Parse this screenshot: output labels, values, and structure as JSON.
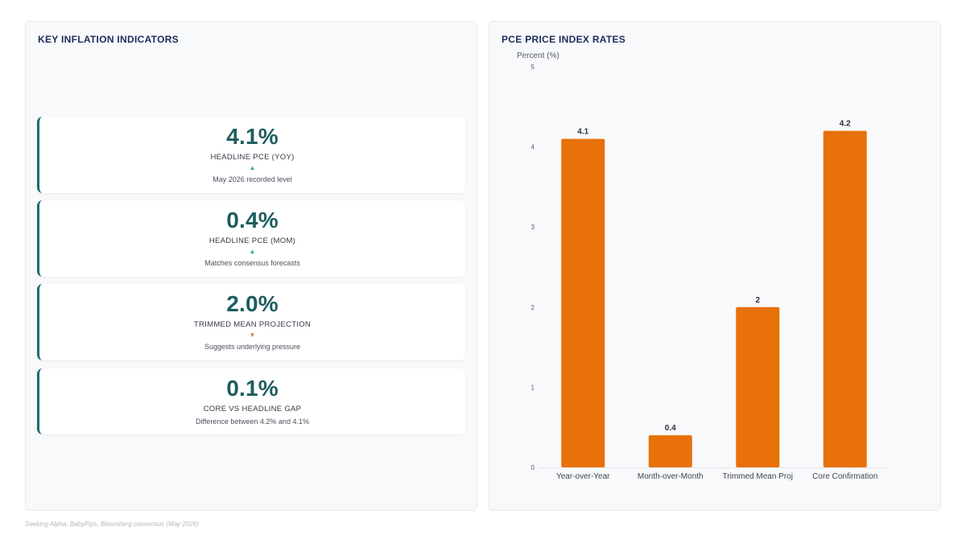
{
  "left_panel": {
    "title": "KEY INFLATION INDICATORS",
    "cards": [
      {
        "value": "4.1%",
        "label": "HEADLINE PCE (YOY)",
        "arrow": "▲",
        "note": "May 2026 recorded level"
      },
      {
        "value": "0.4%",
        "label": "HEADLINE PCE (MOM)",
        "arrow": "▲",
        "note": "Matches consensus forecasts"
      },
      {
        "value": "2.0%",
        "label": "TRIMMED MEAN PROJECTION",
        "arrow": "▼",
        "note": "Suggests underlying pressure"
      },
      {
        "value": "0.1%",
        "label": "CORE VS HEADLINE GAP",
        "arrow": "",
        "note": "Difference between 4.2% and 4.1%"
      }
    ]
  },
  "right_panel": {
    "title": "PCE PRICE INDEX RATES"
  },
  "colors": {
    "bar": "#e8710a",
    "accent": "#1e6b6b",
    "up": "#2aa79b",
    "down": "#e07050"
  },
  "chart_data": {
    "type": "bar",
    "title": "PCE PRICE INDEX RATES",
    "categories": [
      "Year-over-Year",
      "Month-over-Month",
      "Trimmed Mean Proj",
      "Core Confirmation"
    ],
    "values": [
      4.1,
      0.4,
      2,
      4.2
    ],
    "xlabel": "",
    "ylabel": "Percent (%)",
    "ylim": [
      0,
      5
    ],
    "yticks": [
      0,
      1,
      2,
      3,
      4,
      5
    ],
    "grid": false,
    "legend": "none"
  },
  "footer": {
    "source": "Seeking Alpha, BabyPips, Bloomberg consensus (May 2026)"
  }
}
